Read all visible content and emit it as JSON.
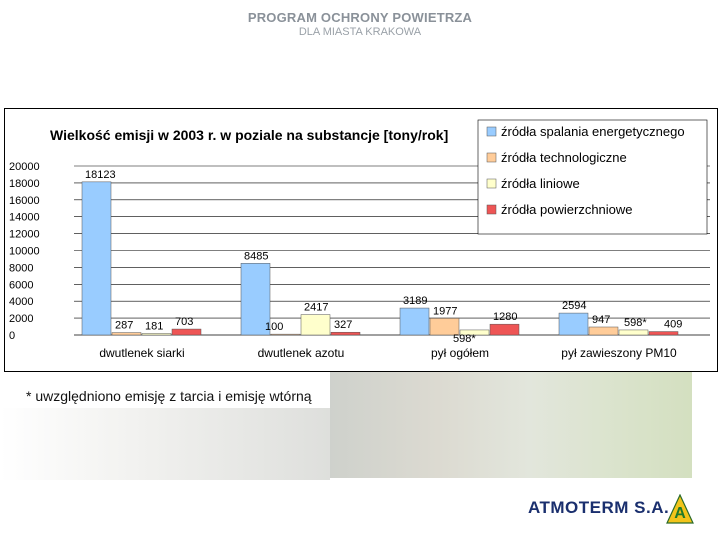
{
  "header": {
    "title": "PROGRAM OCHRONY POWIETRZA",
    "subtitle": "DLA MIASTA KRAKOWA"
  },
  "footnote": "* uwzględniono emisję z tarcia i emisję wtórną",
  "brand": {
    "name": "ATMOTERM S.A.",
    "logo_letter": "A"
  },
  "chart_data": {
    "type": "bar",
    "title": "Wielkość emisji w 2003 r. w poziale na substancje [tony/rok]",
    "categories": [
      "dwutlenek siarki",
      "dwutlenek azotu",
      "pył ogółem",
      "pył zawieszony PM10"
    ],
    "series": [
      {
        "name": "źródła spalania energetycznego",
        "color": "#99ccff",
        "values": [
          18123,
          8485,
          3189,
          2594
        ],
        "labels": [
          "18123",
          "8485",
          "3189",
          "2594"
        ]
      },
      {
        "name": "źródła technologiczne",
        "color": "#ffcc99",
        "values": [
          287,
          100,
          1977,
          947
        ],
        "labels": [
          "287",
          "100",
          "1977",
          "947"
        ]
      },
      {
        "name": "źródła liniowe",
        "color": "#ffffcc",
        "values": [
          181,
          2417,
          598,
          598
        ],
        "labels": [
          "181",
          "2417",
          "598*",
          "598*"
        ]
      },
      {
        "name": "źródła powierzchniowe",
        "color": "#ee5555",
        "values": [
          703,
          327,
          1280,
          409
        ],
        "labels": [
          "703",
          "327",
          "1280",
          "409"
        ]
      }
    ],
    "yticks": [
      0,
      2000,
      4000,
      6000,
      8000,
      10000,
      12000,
      14000,
      16000,
      18000,
      20000
    ],
    "ylim": [
      0,
      20000
    ],
    "xlabel": "",
    "ylabel": "",
    "legend": "top-right",
    "grid": true
  }
}
